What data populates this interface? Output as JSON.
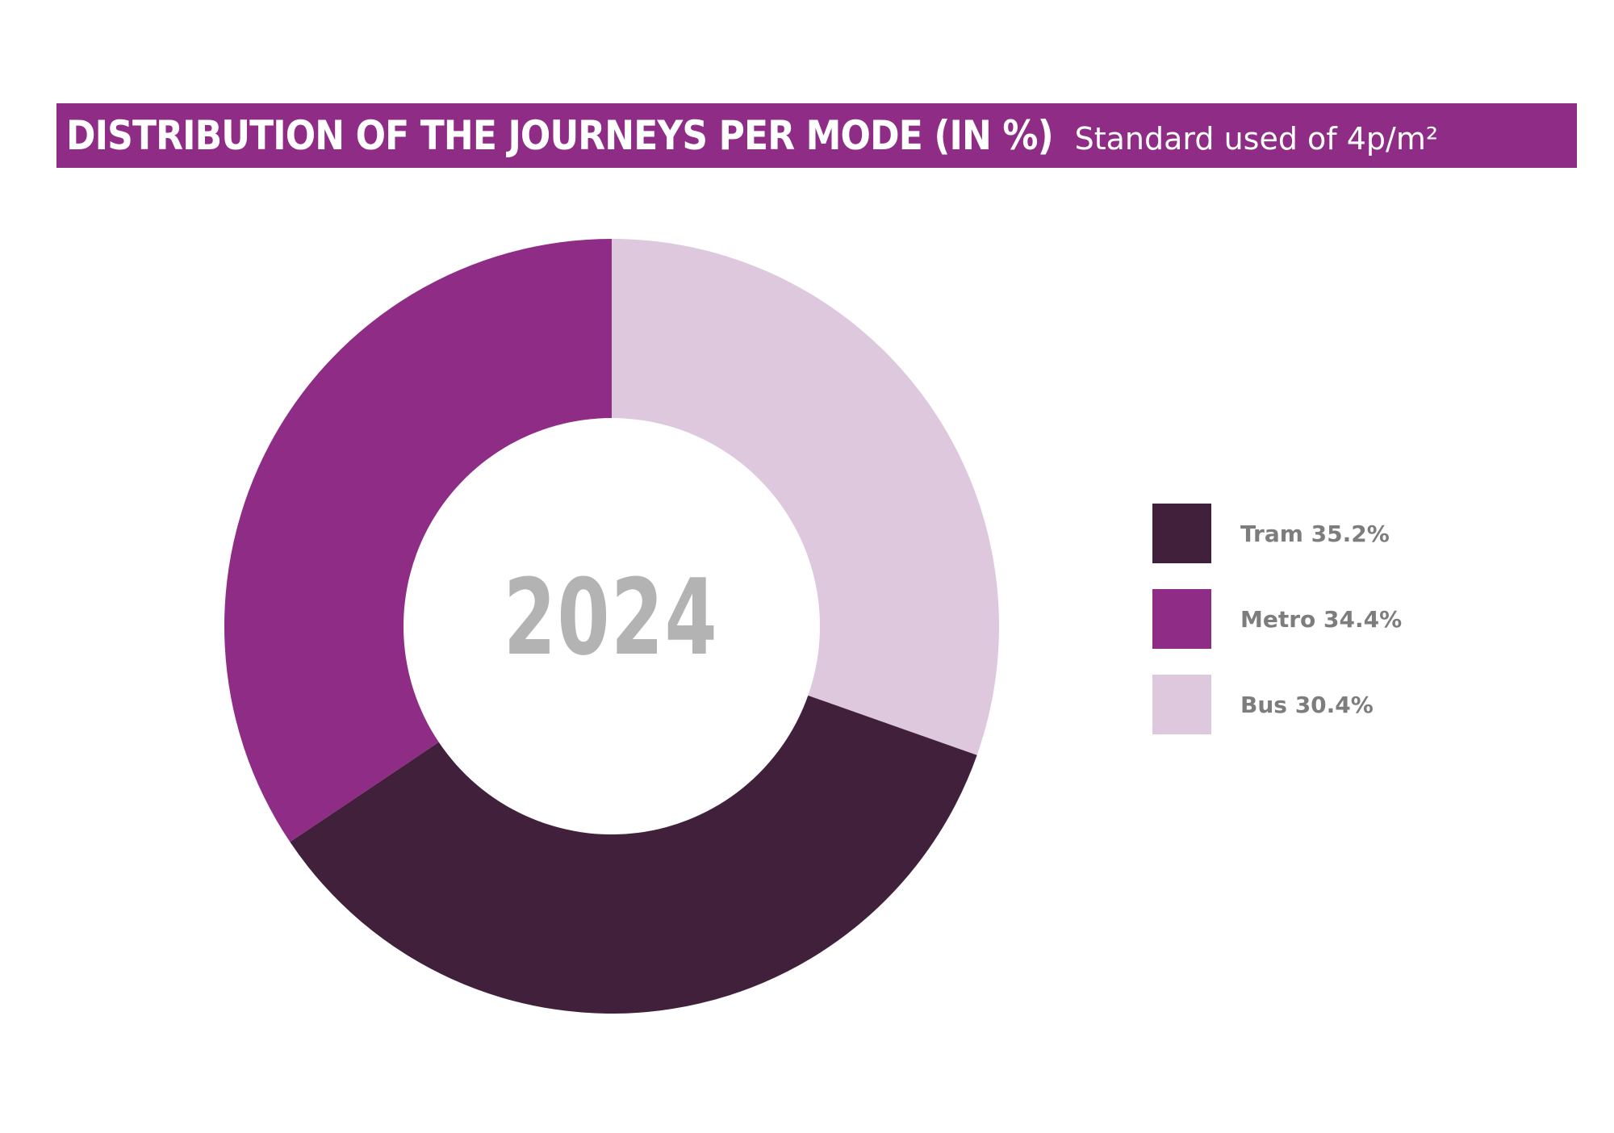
{
  "header": {
    "title": "DISTRIBUTION OF THE JOURNEYS PER MODE (IN %)",
    "subtitle": "Standard used of 4p/m²"
  },
  "center_label": "2024",
  "colors": {
    "banner": "#8f2c86",
    "tram": "#40203b",
    "metro": "#8f2c86",
    "bus": "#ddc8de",
    "center_text": "#b3b3b3",
    "legend_text": "#7d7d7d"
  },
  "legend": [
    {
      "label": "Tram 35.2%",
      "color": "#40203b"
    },
    {
      "label": "Metro 34.4%",
      "color": "#8f2c86"
    },
    {
      "label": "Bus 30.4%",
      "color": "#ddc8de"
    }
  ],
  "chart_data": {
    "type": "pie",
    "variant": "donut",
    "title": "DISTRIBUTION OF THE JOURNEYS PER MODE (IN %)",
    "subtitle": "Standard used of 4p/m²",
    "center_text": "2024",
    "legend_position": "right",
    "start_at": "top",
    "direction": "clockwise",
    "order": [
      "Bus",
      "Tram",
      "Metro"
    ],
    "slices": [
      {
        "name": "Bus",
        "value": 30.4,
        "color": "#ddc8de"
      },
      {
        "name": "Tram",
        "value": 35.2,
        "color": "#40203b"
      },
      {
        "name": "Metro",
        "value": 34.4,
        "color": "#8f2c86"
      }
    ]
  }
}
